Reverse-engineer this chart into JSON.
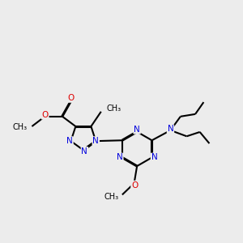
{
  "background_color": "#ececec",
  "bond_color": "#000000",
  "N_color": "#0000dd",
  "O_color": "#dd0000",
  "lw": 1.5,
  "dbo": 0.018,
  "figsize": [
    3.0,
    3.0
  ],
  "dpi": 100,
  "xlim": [
    0.0,
    10.0
  ],
  "ylim": [
    1.5,
    9.5
  ]
}
